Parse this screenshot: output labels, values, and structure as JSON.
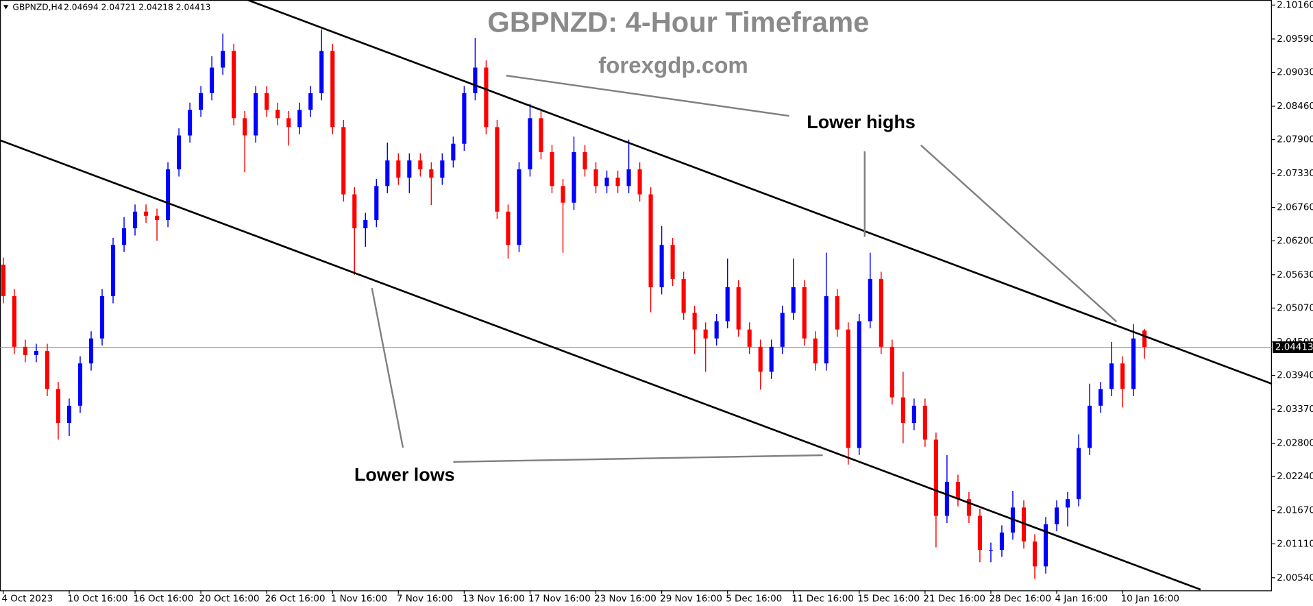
{
  "chart_data": {
    "type": "candlestick",
    "title": "GBPNZD: 4-Hour Timeframe",
    "subtitle": "forexgdp.com",
    "symbol": "GBPNZD,H4",
    "ohlc_text": "2.04694 2.04721 2.04218 2.04413",
    "annotations": [
      "Lower highs",
      "Lower lows"
    ],
    "categories": [
      "4 Oct 2023",
      null,
      null,
      null,
      null,
      null,
      "10 Oct 16:00",
      null,
      null,
      null,
      null,
      null,
      "16 Oct 16:00",
      null,
      null,
      null,
      null,
      null,
      "20 Oct 16:00",
      null,
      null,
      null,
      null,
      null,
      "26 Oct 16:00",
      null,
      null,
      null,
      null,
      null,
      "1 Nov 16:00",
      null,
      null,
      null,
      null,
      null,
      "7 Nov 16:00",
      null,
      null,
      null,
      null,
      null,
      "13 Nov 16:00",
      null,
      null,
      null,
      null,
      null,
      "17 Nov 16:00",
      null,
      null,
      null,
      null,
      null,
      "23 Nov 16:00",
      null,
      null,
      null,
      null,
      null,
      "29 Nov 16:00",
      null,
      null,
      null,
      null,
      null,
      "5 Dec 16:00",
      null,
      null,
      null,
      null,
      null,
      "11 Dec 16:00",
      null,
      null,
      null,
      null,
      null,
      "15 Dec 16:00",
      null,
      null,
      null,
      null,
      null,
      "21 Dec 16:00",
      null,
      null,
      null,
      null,
      null,
      "28 Dec 16:00",
      null,
      null,
      null,
      null,
      null,
      "4 Jan 16:00",
      null,
      null,
      null,
      null,
      null,
      "10 Jan 16:00",
      null,
      null
    ],
    "open": [
      2.058,
      2.0527,
      2.0442,
      2.0428,
      2.0435,
      2.0371,
      2.0314,
      2.0343,
      2.0414,
      2.0456,
      2.0527,
      2.0613,
      2.0641,
      2.0669,
      2.0662,
      2.0655,
      2.074,
      2.0797,
      2.084,
      2.0868,
      2.0911,
      2.0939,
      2.0826,
      2.0797,
      2.0868,
      2.084,
      2.0826,
      2.0811,
      2.084,
      2.0868,
      2.0939,
      2.0811,
      2.0698,
      2.0641,
      2.0655,
      2.0712,
      2.0755,
      2.0726,
      2.0755,
      2.074,
      2.0726,
      2.0755,
      2.0783,
      2.0868,
      2.0911,
      2.0811,
      2.0669,
      2.0613,
      2.074,
      2.0826,
      2.0769,
      2.0712,
      2.0684,
      2.0769,
      2.074,
      2.0712,
      2.0726,
      2.0712,
      2.074,
      2.0698,
      2.0542,
      2.0613,
      2.0556,
      2.0499,
      2.0471,
      2.0456,
      2.0485,
      2.0542,
      2.0471,
      2.0442,
      2.04,
      2.0442,
      2.0499,
      2.0542,
      2.0456,
      2.0414,
      2.0527,
      2.0471,
      2.0272,
      2.0485,
      2.0556,
      2.0442,
      2.0357,
      2.0314,
      2.0343,
      2.0286,
      2.0158,
      2.0215,
      2.0186,
      2.0158,
      2.0101,
      2.0101,
      2.013,
      2.0172,
      2.0115,
      2.0073,
      2.0144,
      2.0172,
      2.0186,
      2.0272,
      2.0343,
      2.0371,
      2.0414,
      2.0371,
      2.04694
    ],
    "high": [
      2.0592,
      2.0539,
      2.0454,
      2.0447,
      2.0447,
      2.0383,
      2.0355,
      2.0426,
      2.0468,
      2.0539,
      2.0625,
      2.066,
      2.0681,
      2.0681,
      2.0674,
      2.0752,
      2.0809,
      2.0852,
      2.088,
      2.093,
      2.0968,
      2.0951,
      2.0838,
      2.088,
      2.088,
      2.0852,
      2.0838,
      2.0852,
      2.088,
      2.0975,
      2.0951,
      2.0823,
      2.071,
      2.0667,
      2.0724,
      2.0785,
      2.0767,
      2.0767,
      2.0767,
      2.0752,
      2.0767,
      2.0795,
      2.088,
      2.0961,
      2.0923,
      2.0823,
      2.0681,
      2.0752,
      2.085,
      2.0838,
      2.0781,
      2.0724,
      2.0795,
      2.0781,
      2.0752,
      2.0738,
      2.0738,
      2.079,
      2.0752,
      2.071,
      2.0645,
      2.0625,
      2.0568,
      2.0511,
      2.0483,
      2.0497,
      2.059,
      2.0554,
      2.0483,
      2.0454,
      2.0454,
      2.0511,
      2.059,
      2.0554,
      2.0468,
      2.06,
      2.0539,
      2.0483,
      2.0497,
      2.06,
      2.0568,
      2.0454,
      2.04,
      2.0355,
      2.0355,
      2.0298,
      2.026,
      2.0227,
      2.0198,
      2.017,
      2.0113,
      2.0142,
      2.02,
      2.0184,
      2.0127,
      2.0156,
      2.0184,
      2.0198,
      2.0295,
      2.038,
      2.0383,
      2.045,
      2.0426,
      2.048,
      2.04721
    ],
    "low": [
      2.0515,
      2.043,
      2.0416,
      2.0416,
      2.0359,
      2.0286,
      2.0292,
      2.0331,
      2.0402,
      2.0444,
      2.0515,
      2.0601,
      2.0629,
      2.065,
      2.062,
      2.0643,
      2.0728,
      2.0785,
      2.0828,
      2.0856,
      2.0899,
      2.0814,
      2.0735,
      2.0785,
      2.0828,
      2.0814,
      2.078,
      2.0799,
      2.0828,
      2.0856,
      2.0799,
      2.0686,
      2.0563,
      2.061,
      2.0643,
      2.07,
      2.0714,
      2.07,
      2.0728,
      2.068,
      2.0714,
      2.0743,
      2.0771,
      2.0856,
      2.0799,
      2.0657,
      2.059,
      2.0601,
      2.0728,
      2.0757,
      2.07,
      2.06,
      2.0672,
      2.0728,
      2.07,
      2.07,
      2.07,
      2.07,
      2.0686,
      2.05,
      2.053,
      2.0544,
      2.0487,
      2.043,
      2.04,
      2.0444,
      2.0473,
      2.0459,
      2.043,
      2.037,
      2.0388,
      2.043,
      2.0487,
      2.0444,
      2.0402,
      2.0402,
      2.0459,
      2.0244,
      2.026,
      2.0473,
      2.043,
      2.0345,
      2.028,
      2.0302,
      2.0274,
      2.0105,
      2.0146,
      2.0174,
      2.0146,
      2.008,
      2.008,
      2.0089,
      2.0118,
      2.0103,
      2.0052,
      2.0061,
      2.0132,
      2.014,
      2.0174,
      2.026,
      2.0331,
      2.0359,
      2.034,
      2.0359,
      2.04218
    ],
    "close": [
      2.0527,
      2.0442,
      2.0428,
      2.0435,
      2.0371,
      2.0314,
      2.0343,
      2.0414,
      2.0456,
      2.0527,
      2.0613,
      2.0641,
      2.0669,
      2.0662,
      2.0655,
      2.074,
      2.0797,
      2.084,
      2.0868,
      2.0911,
      2.0939,
      2.0826,
      2.0797,
      2.0868,
      2.084,
      2.0826,
      2.0811,
      2.084,
      2.0868,
      2.0939,
      2.0811,
      2.0698,
      2.0641,
      2.0655,
      2.0712,
      2.0755,
      2.0726,
      2.0755,
      2.074,
      2.0726,
      2.0755,
      2.0783,
      2.0868,
      2.0911,
      2.0811,
      2.0669,
      2.0613,
      2.074,
      2.0826,
      2.0769,
      2.0712,
      2.0684,
      2.0769,
      2.074,
      2.0712,
      2.0726,
      2.0712,
      2.074,
      2.0698,
      2.0542,
      2.0613,
      2.0556,
      2.0499,
      2.0471,
      2.0456,
      2.0485,
      2.0542,
      2.0471,
      2.0442,
      2.04,
      2.0442,
      2.0499,
      2.0542,
      2.0456,
      2.0414,
      2.0527,
      2.0471,
      2.0272,
      2.0485,
      2.0556,
      2.0442,
      2.0357,
      2.0314,
      2.0343,
      2.0286,
      2.0158,
      2.0215,
      2.0186,
      2.0158,
      2.0101,
      2.0101,
      2.013,
      2.0172,
      2.0115,
      2.0073,
      2.0144,
      2.0172,
      2.0186,
      2.0272,
      2.0343,
      2.0371,
      2.0414,
      2.0371,
      2.0456,
      2.04413
    ],
    "up_color": "#0000ff",
    "down_color": "#ff0000",
    "ylim": [
      2.00328,
      2.10245
    ],
    "yticks": [
      {
        "value": 2.1016,
        "label": "2.10160"
      },
      {
        "value": 2.0959,
        "label": "2.09590"
      },
      {
        "value": 2.0903,
        "label": "2.09030"
      },
      {
        "value": 2.0846,
        "label": "2.08460"
      },
      {
        "value": 2.079,
        "label": "2.07900"
      },
      {
        "value": 2.0733,
        "label": "2.07330"
      },
      {
        "value": 2.0676,
        "label": "2.06760"
      },
      {
        "value": 2.062,
        "label": "2.06200"
      },
      {
        "value": 2.0563,
        "label": "2.05630"
      },
      {
        "value": 2.0507,
        "label": "2.05070"
      },
      {
        "value": 2.045,
        "label": "2.04500"
      },
      {
        "value": 2.0394,
        "label": "2.03940"
      },
      {
        "value": 2.0337,
        "label": "2.03370"
      },
      {
        "value": 2.028,
        "label": "2.02800"
      },
      {
        "value": 2.0224,
        "label": "2.02240"
      },
      {
        "value": 2.0167,
        "label": "2.01670"
      },
      {
        "value": 2.0111,
        "label": "2.01110"
      },
      {
        "value": 2.0054,
        "label": "2.00540"
      }
    ],
    "current_price": {
      "value": 2.04413,
      "label": "2.04413"
    },
    "grid": false
  }
}
